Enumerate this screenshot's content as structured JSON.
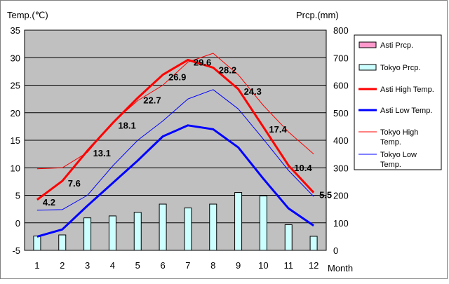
{
  "chart_data": {
    "type": "bar+line",
    "left_axis_label": "Temp.(℃)",
    "right_axis_label": "Prcp.(mm)",
    "xlabel": "Month",
    "x": [
      "1",
      "2",
      "3",
      "4",
      "5",
      "6",
      "7",
      "8",
      "9",
      "10",
      "11",
      "12"
    ],
    "y_left_lim": [
      -5,
      35
    ],
    "y_left_ticks": [
      "35",
      "30",
      "25",
      "20",
      "15",
      "10",
      "5",
      "0",
      "-5"
    ],
    "y_right_lim": [
      0,
      800
    ],
    "y_right_ticks": [
      "800",
      "700",
      "600",
      "500",
      "400",
      "300",
      "200",
      "100",
      "0"
    ],
    "grid": true,
    "legend_position": "right",
    "bars": [
      {
        "name": "Asti Prcp.",
        "color": "#ff99cc",
        "values": []
      },
      {
        "name": "Tokyo Prcp.",
        "color": "#ccffff",
        "values": [
          52,
          56,
          118,
          125,
          138,
          168,
          154,
          168,
          210,
          198,
          93,
          51
        ]
      }
    ],
    "lines": [
      {
        "name": "Asti High Temp.",
        "color": "#ff0000",
        "width": 3,
        "values": [
          4.2,
          7.6,
          13.1,
          18.1,
          22.7,
          26.9,
          29.6,
          28.2,
          24.3,
          17.4,
          10.4,
          5.5
        ]
      },
      {
        "name": "Asti Low Temp.",
        "color": "#0000ff",
        "width": 3,
        "values": [
          -2.5,
          -1.2,
          3.1,
          7.2,
          11.3,
          15.7,
          17.7,
          17.0,
          13.7,
          8.0,
          2.6,
          -0.5
        ]
      },
      {
        "name": "Tokyo High Temp.",
        "color": "#ff0000",
        "width": 1,
        "values": [
          9.8,
          10.0,
          12.8,
          18.2,
          22.2,
          25.0,
          29.2,
          30.8,
          26.9,
          21.3,
          16.5,
          12.5
        ]
      },
      {
        "name": "Tokyo Low Temp.",
        "color": "#0000ff",
        "width": 1,
        "values": [
          2.3,
          2.4,
          5.0,
          10.3,
          15.0,
          18.5,
          22.5,
          24.2,
          20.7,
          15.2,
          9.5,
          4.8
        ]
      }
    ],
    "data_labels": [
      "4.2",
      "7.6",
      "13.1",
      "18.1",
      "22.7",
      "26.9",
      "29.6",
      "28.2",
      "24.3",
      "17.4",
      "10.4",
      "5.5"
    ]
  }
}
